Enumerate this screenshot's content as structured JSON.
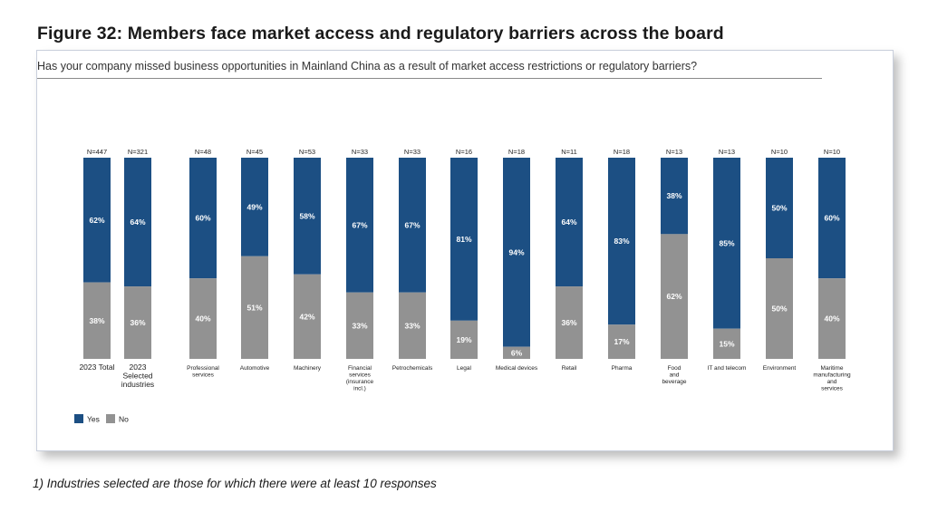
{
  "figure": {
    "title": "Figure 32: Members face market access and regulatory barriers across the board",
    "subtitle": "Has your company missed business opportunities in Mainland China as a result of market access restrictions or regulatory barriers?"
  },
  "footnote": "1) Industries selected are those for which there were at least 10 responses",
  "colors": {
    "yes": "#1c4f83",
    "no": "#929292"
  },
  "chart_data": {
    "type": "bar",
    "stacked": true,
    "normalized": true,
    "categories": [
      "2023 Total",
      "2023 Selected industries",
      "Professional services",
      "Automotive",
      "Machinery",
      "Financial services (insurance incl.)",
      "Petrochemicals",
      "Legal",
      "Medical devices",
      "Retail",
      "Pharma",
      "Food and beverage",
      "IT and telecom",
      "Environment",
      "Maritime manufacturing and services"
    ],
    "category_lines": [
      [
        "2023 Total"
      ],
      [
        "2023",
        "Selected",
        "industries"
      ],
      [
        "Professional",
        "services"
      ],
      [
        "Automotive"
      ],
      [
        "Machinery"
      ],
      [
        "Financial",
        "services",
        "(insurance",
        "incl.)"
      ],
      [
        "Petrochemicals"
      ],
      [
        "Legal"
      ],
      [
        "Medical devices"
      ],
      [
        "Retail"
      ],
      [
        "Pharma"
      ],
      [
        "Food",
        "and",
        "beverage"
      ],
      [
        "IT and telecom"
      ],
      [
        "Environment"
      ],
      [
        "Maritime",
        "manufacturing",
        "and",
        "services"
      ]
    ],
    "n_labels": [
      "N=447",
      "N=321",
      "N=48",
      "N=45",
      "N=53",
      "N=33",
      "N=33",
      "N=16",
      "N=18",
      "N=11",
      "N=18",
      "N=13",
      "N=13",
      "N=10",
      "N=10"
    ],
    "series": [
      {
        "name": "Yes",
        "values": [
          62,
          64,
          60,
          49,
          58,
          67,
          67,
          81,
          94,
          64,
          83,
          38,
          85,
          50,
          60
        ]
      },
      {
        "name": "No",
        "values": [
          38,
          36,
          40,
          51,
          42,
          33,
          33,
          19,
          6,
          36,
          17,
          62,
          15,
          50,
          40
        ]
      }
    ],
    "value_suffix": "%",
    "ylim": [
      0,
      100
    ],
    "grid": false,
    "legend_position": "bottom-left"
  }
}
